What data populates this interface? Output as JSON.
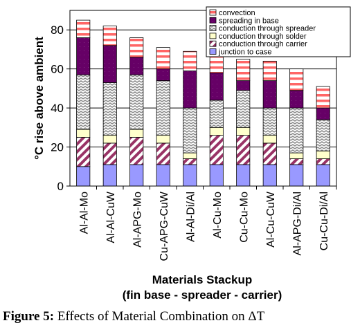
{
  "colors": {
    "junction_to_case": "#9999ff",
    "conduction_carrier": "#993366",
    "conduction_solder": "#ffffcc",
    "conduction_spreader": "#c0c0c0",
    "spreading_in_base": "#660066",
    "convection": "#ff6666"
  },
  "caption": {
    "label": "Figure 5:",
    "text": "Effects of Material Combination on ΔT"
  },
  "chart_data": {
    "type": "bar",
    "stacked": true,
    "xlabel": "Materials Stackup",
    "xlabel2": "(fin base - spreader - carrier)",
    "ylabel": "°C rise above ambient",
    "ylim": [
      0,
      90
    ],
    "yticks": [
      0,
      20,
      40,
      60,
      80
    ],
    "grid": true,
    "legend_position": "top-right",
    "legend_order": [
      5,
      4,
      3,
      2,
      1,
      0
    ],
    "categories": [
      "Al-Al-Mo",
      "Al-Al-CuW",
      "Al-APG-Mo",
      "Cu-APG-CuW",
      "Al-Al-Di/Al",
      "Al-Cu-Mo",
      "Cu-Cu-Mo",
      "Al-Cu-CuW",
      "Al-APG-Di/Al",
      "Cu-Cu-Di/Al"
    ],
    "series": [
      {
        "name": "junction to case",
        "values": [
          10,
          11,
          11,
          11,
          11,
          11,
          11,
          11,
          11,
          11
        ]
      },
      {
        "name": "conduction through carrier",
        "values": [
          15,
          11,
          14,
          11,
          3,
          15,
          15,
          11,
          3,
          3
        ]
      },
      {
        "name": "conduction through solder",
        "values": [
          4,
          4,
          4,
          4,
          3,
          4,
          4,
          4,
          3,
          4
        ]
      },
      {
        "name": "conduction through spreader",
        "values": [
          28,
          27,
          28,
          28,
          23,
          14,
          19,
          14,
          23,
          16
        ]
      },
      {
        "name": "spreading in base",
        "values": [
          19,
          19,
          9,
          6,
          19,
          14,
          5,
          14,
          9,
          6
        ]
      },
      {
        "name": "convection",
        "values": [
          9,
          10,
          10,
          11,
          10,
          10,
          11,
          10,
          11,
          11
        ]
      }
    ]
  }
}
